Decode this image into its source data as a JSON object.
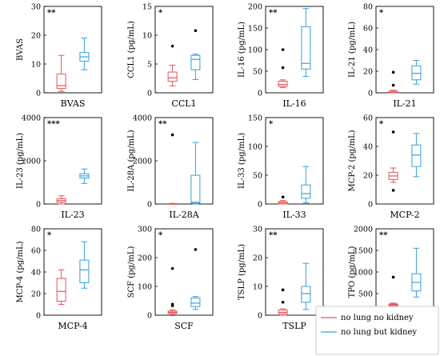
{
  "chart_data": {
    "type": "box",
    "series": [
      {
        "name": "no lung no kidney",
        "color": "#e8545a"
      },
      {
        "name": "no lung but kidney",
        "color": "#3a9fd6"
      }
    ],
    "legend": {
      "position": "bottom-right",
      "entries": [
        "no lung no kidney",
        "no lung but kidney"
      ]
    },
    "panels": [
      {
        "title": "BVAS",
        "ylabel": "BVAS",
        "significance": "**",
        "ylim": [
          0,
          30
        ],
        "yticks": [
          0,
          10,
          20,
          30
        ],
        "boxes": [
          {
            "series": "no lung no kidney",
            "whisker_low": 0.5,
            "q1": 1.5,
            "median": 2.5,
            "q3": 6.5,
            "whisker_high": 13,
            "outliers": []
          },
          {
            "series": "no lung but kidney",
            "whisker_low": 8,
            "q1": 11,
            "median": 12.5,
            "q3": 14,
            "whisker_high": 19,
            "outliers": []
          }
        ]
      },
      {
        "title": "CCL1",
        "ylabel": "CCL1 (pg/mL)",
        "significance": "*",
        "ylim": [
          0,
          15
        ],
        "yticks": [
          0,
          5,
          10,
          15
        ],
        "boxes": [
          {
            "series": "no lung no kidney",
            "whisker_low": 1.2,
            "q1": 2.0,
            "median": 2.6,
            "q3": 3.6,
            "whisker_high": 4.8,
            "outliers": [
              8.1
            ]
          },
          {
            "series": "no lung but kidney",
            "whisker_low": 2.3,
            "q1": 4.0,
            "median": 5.8,
            "q3": 6.5,
            "whisker_high": 6.7,
            "outliers": [
              10.8
            ]
          }
        ]
      },
      {
        "title": "IL-16",
        "ylabel": "IL-16 (pg/mL)",
        "significance": "**",
        "ylim": [
          0,
          200
        ],
        "yticks": [
          0,
          50,
          100,
          150,
          200
        ],
        "boxes": [
          {
            "series": "no lung no kidney",
            "whisker_low": 12,
            "q1": 15,
            "median": 19,
            "q3": 27,
            "whisker_high": 30,
            "outliers": [
              58,
              100
            ]
          },
          {
            "series": "no lung but kidney",
            "whisker_low": 38,
            "q1": 55,
            "median": 68,
            "q3": 153,
            "whisker_high": 195,
            "outliers": []
          }
        ]
      },
      {
        "title": "IL-21",
        "ylabel": "IL-21 (pg/mL)",
        "significance": "*",
        "ylim": [
          0,
          80
        ],
        "yticks": [
          0,
          20,
          40,
          60,
          80
        ],
        "boxes": [
          {
            "series": "no lung no kidney",
            "whisker_low": 0,
            "q1": 0,
            "median": 0.5,
            "q3": 1.5,
            "whisker_high": 2.5,
            "outliers": [
              7,
              19
            ]
          },
          {
            "series": "no lung but kidney",
            "whisker_low": 8,
            "q1": 12,
            "median": 18,
            "q3": 25,
            "whisker_high": 30,
            "outliers": []
          }
        ]
      },
      {
        "title": "IL-23",
        "ylabel": "IL-23 (pg/mL)",
        "significance": "***",
        "ylim": [
          0,
          4000
        ],
        "yticks": [
          0,
          2000,
          4000
        ],
        "boxes": [
          {
            "series": "no lung no kidney",
            "whisker_low": 0,
            "q1": 80,
            "median": 160,
            "q3": 240,
            "whisker_high": 380,
            "outliers": []
          },
          {
            "series": "no lung but kidney",
            "whisker_low": 950,
            "q1": 1200,
            "median": 1300,
            "q3": 1400,
            "whisker_high": 1620,
            "outliers": []
          }
        ]
      },
      {
        "title": "IL-28A",
        "ylabel": "IL-28A (pg/mL)",
        "significance": "**",
        "ylim": [
          0,
          4000
        ],
        "yticks": [
          0,
          2000,
          4000
        ],
        "boxes": [
          {
            "series": "no lung no kidney",
            "whisker_low": 0,
            "q1": 0,
            "median": 0,
            "q3": 15,
            "whisker_high": 30,
            "outliers": [
              3200
            ]
          },
          {
            "series": "no lung but kidney",
            "whisker_low": 0,
            "q1": 30,
            "median": 80,
            "q3": 1330,
            "whisker_high": 2850,
            "outliers": []
          }
        ]
      },
      {
        "title": "IL-33",
        "ylabel": "IL-33 (pg/mL)",
        "significance": "*",
        "ylim": [
          0,
          150
        ],
        "yticks": [
          0,
          50,
          100,
          150
        ],
        "boxes": [
          {
            "series": "no lung no kidney",
            "whisker_low": 0,
            "q1": 0,
            "median": 2,
            "q3": 4,
            "whisker_high": 6,
            "outliers": [
              12
            ]
          },
          {
            "series": "no lung but kidney",
            "whisker_low": 2,
            "q1": 10,
            "median": 18,
            "q3": 33,
            "whisker_high": 65,
            "outliers": []
          }
        ]
      },
      {
        "title": "MCP-2",
        "ylabel": "MCP-2 (pg/mL)",
        "significance": "*",
        "ylim": [
          0,
          60
        ],
        "yticks": [
          0,
          20,
          40,
          60
        ],
        "boxes": [
          {
            "series": "no lung no kidney",
            "whisker_low": 15,
            "q1": 17,
            "median": 19.5,
            "q3": 22,
            "whisker_high": 25,
            "outliers": [
              9.5,
              50
            ]
          },
          {
            "series": "no lung but kidney",
            "whisker_low": 19,
            "q1": 26,
            "median": 34,
            "q3": 41,
            "whisker_high": 49,
            "outliers": []
          }
        ]
      },
      {
        "title": "MCP-4",
        "ylabel": "MCP-4 (pg/mL)",
        "significance": "*",
        "ylim": [
          0,
          80
        ],
        "yticks": [
          0,
          20,
          40,
          60,
          80
        ],
        "boxes": [
          {
            "series": "no lung no kidney",
            "whisker_low": 10,
            "q1": 13,
            "median": 22,
            "q3": 34,
            "whisker_high": 42,
            "outliers": []
          },
          {
            "series": "no lung but kidney",
            "whisker_low": 25,
            "q1": 30,
            "median": 42,
            "q3": 51,
            "whisker_high": 68,
            "outliers": []
          }
        ]
      },
      {
        "title": "SCF",
        "ylabel": "SCF (pg/mL)",
        "significance": "*",
        "ylim": [
          0,
          300
        ],
        "yticks": [
          0,
          100,
          200,
          300
        ],
        "boxes": [
          {
            "series": "no lung no kidney",
            "whisker_low": 2,
            "q1": 6,
            "median": 10,
            "q3": 14,
            "whisker_high": 18,
            "outliers": [
              33,
              38,
              162
            ]
          },
          {
            "series": "no lung but kidney",
            "whisker_low": 20,
            "q1": 30,
            "median": 42,
            "q3": 60,
            "whisker_high": 65,
            "outliers": [
              228
            ]
          }
        ]
      },
      {
        "title": "TSLP",
        "ylabel": "TSLP (pg/mL)",
        "significance": "**",
        "ylim": [
          0,
          30
        ],
        "yticks": [
          0,
          10,
          20,
          30
        ],
        "boxes": [
          {
            "series": "no lung no kidney",
            "whisker_low": 0,
            "q1": 0.5,
            "median": 1.0,
            "q3": 1.8,
            "whisker_high": 2.2,
            "outliers": [
              4.5,
              8.8
            ]
          },
          {
            "series": "no lung but kidney",
            "whisker_low": 2.0,
            "q1": 4.5,
            "median": 7.5,
            "q3": 10.0,
            "whisker_high": 18.0,
            "outliers": []
          }
        ]
      },
      {
        "title": "TPO",
        "ylabel": "TPO (pg/mL)",
        "significance": "**",
        "ylim": [
          0,
          2000
        ],
        "yticks": [
          0,
          500,
          1000,
          1500,
          2000
        ],
        "boxes": [
          {
            "series": "no lung no kidney",
            "whisker_low": 180,
            "q1": 220,
            "median": 240,
            "q3": 260,
            "whisker_high": 280,
            "outliers": [
              170,
              880
            ]
          },
          {
            "series": "no lung but kidney",
            "whisker_low": 420,
            "q1": 560,
            "median": 760,
            "q3": 960,
            "whisker_high": 1550,
            "outliers": []
          }
        ]
      }
    ]
  }
}
